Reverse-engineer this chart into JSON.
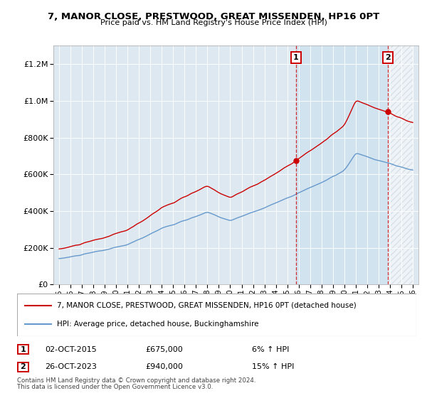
{
  "title": "7, MANOR CLOSE, PRESTWOOD, GREAT MISSENDEN, HP16 0PT",
  "subtitle": "Price paid vs. HM Land Registry's House Price Index (HPI)",
  "sale1_date": "02-OCT-2015",
  "sale1_price": 675000,
  "sale1_label": "6% ↑ HPI",
  "sale1_year": 2015.75,
  "sale2_date": "26-OCT-2023",
  "sale2_price": 940000,
  "sale2_label": "15% ↑ HPI",
  "sale2_year": 2023.82,
  "legend_line1": "7, MANOR CLOSE, PRESTWOOD, GREAT MISSENDEN, HP16 0PT (detached house)",
  "legend_line2": "HPI: Average price, detached house, Buckinghamshire",
  "footer1": "Contains HM Land Registry data © Crown copyright and database right 2024.",
  "footer2": "This data is licensed under the Open Government Licence v3.0.",
  "red_color": "#cc0000",
  "blue_color": "#6699cc",
  "fill_color": "#ddeeff",
  "background_color": "#ffffff",
  "grid_color": "#cccccc",
  "ylim_max": 1300000,
  "xlim_start": 1994.5,
  "xlim_end": 2026.5
}
